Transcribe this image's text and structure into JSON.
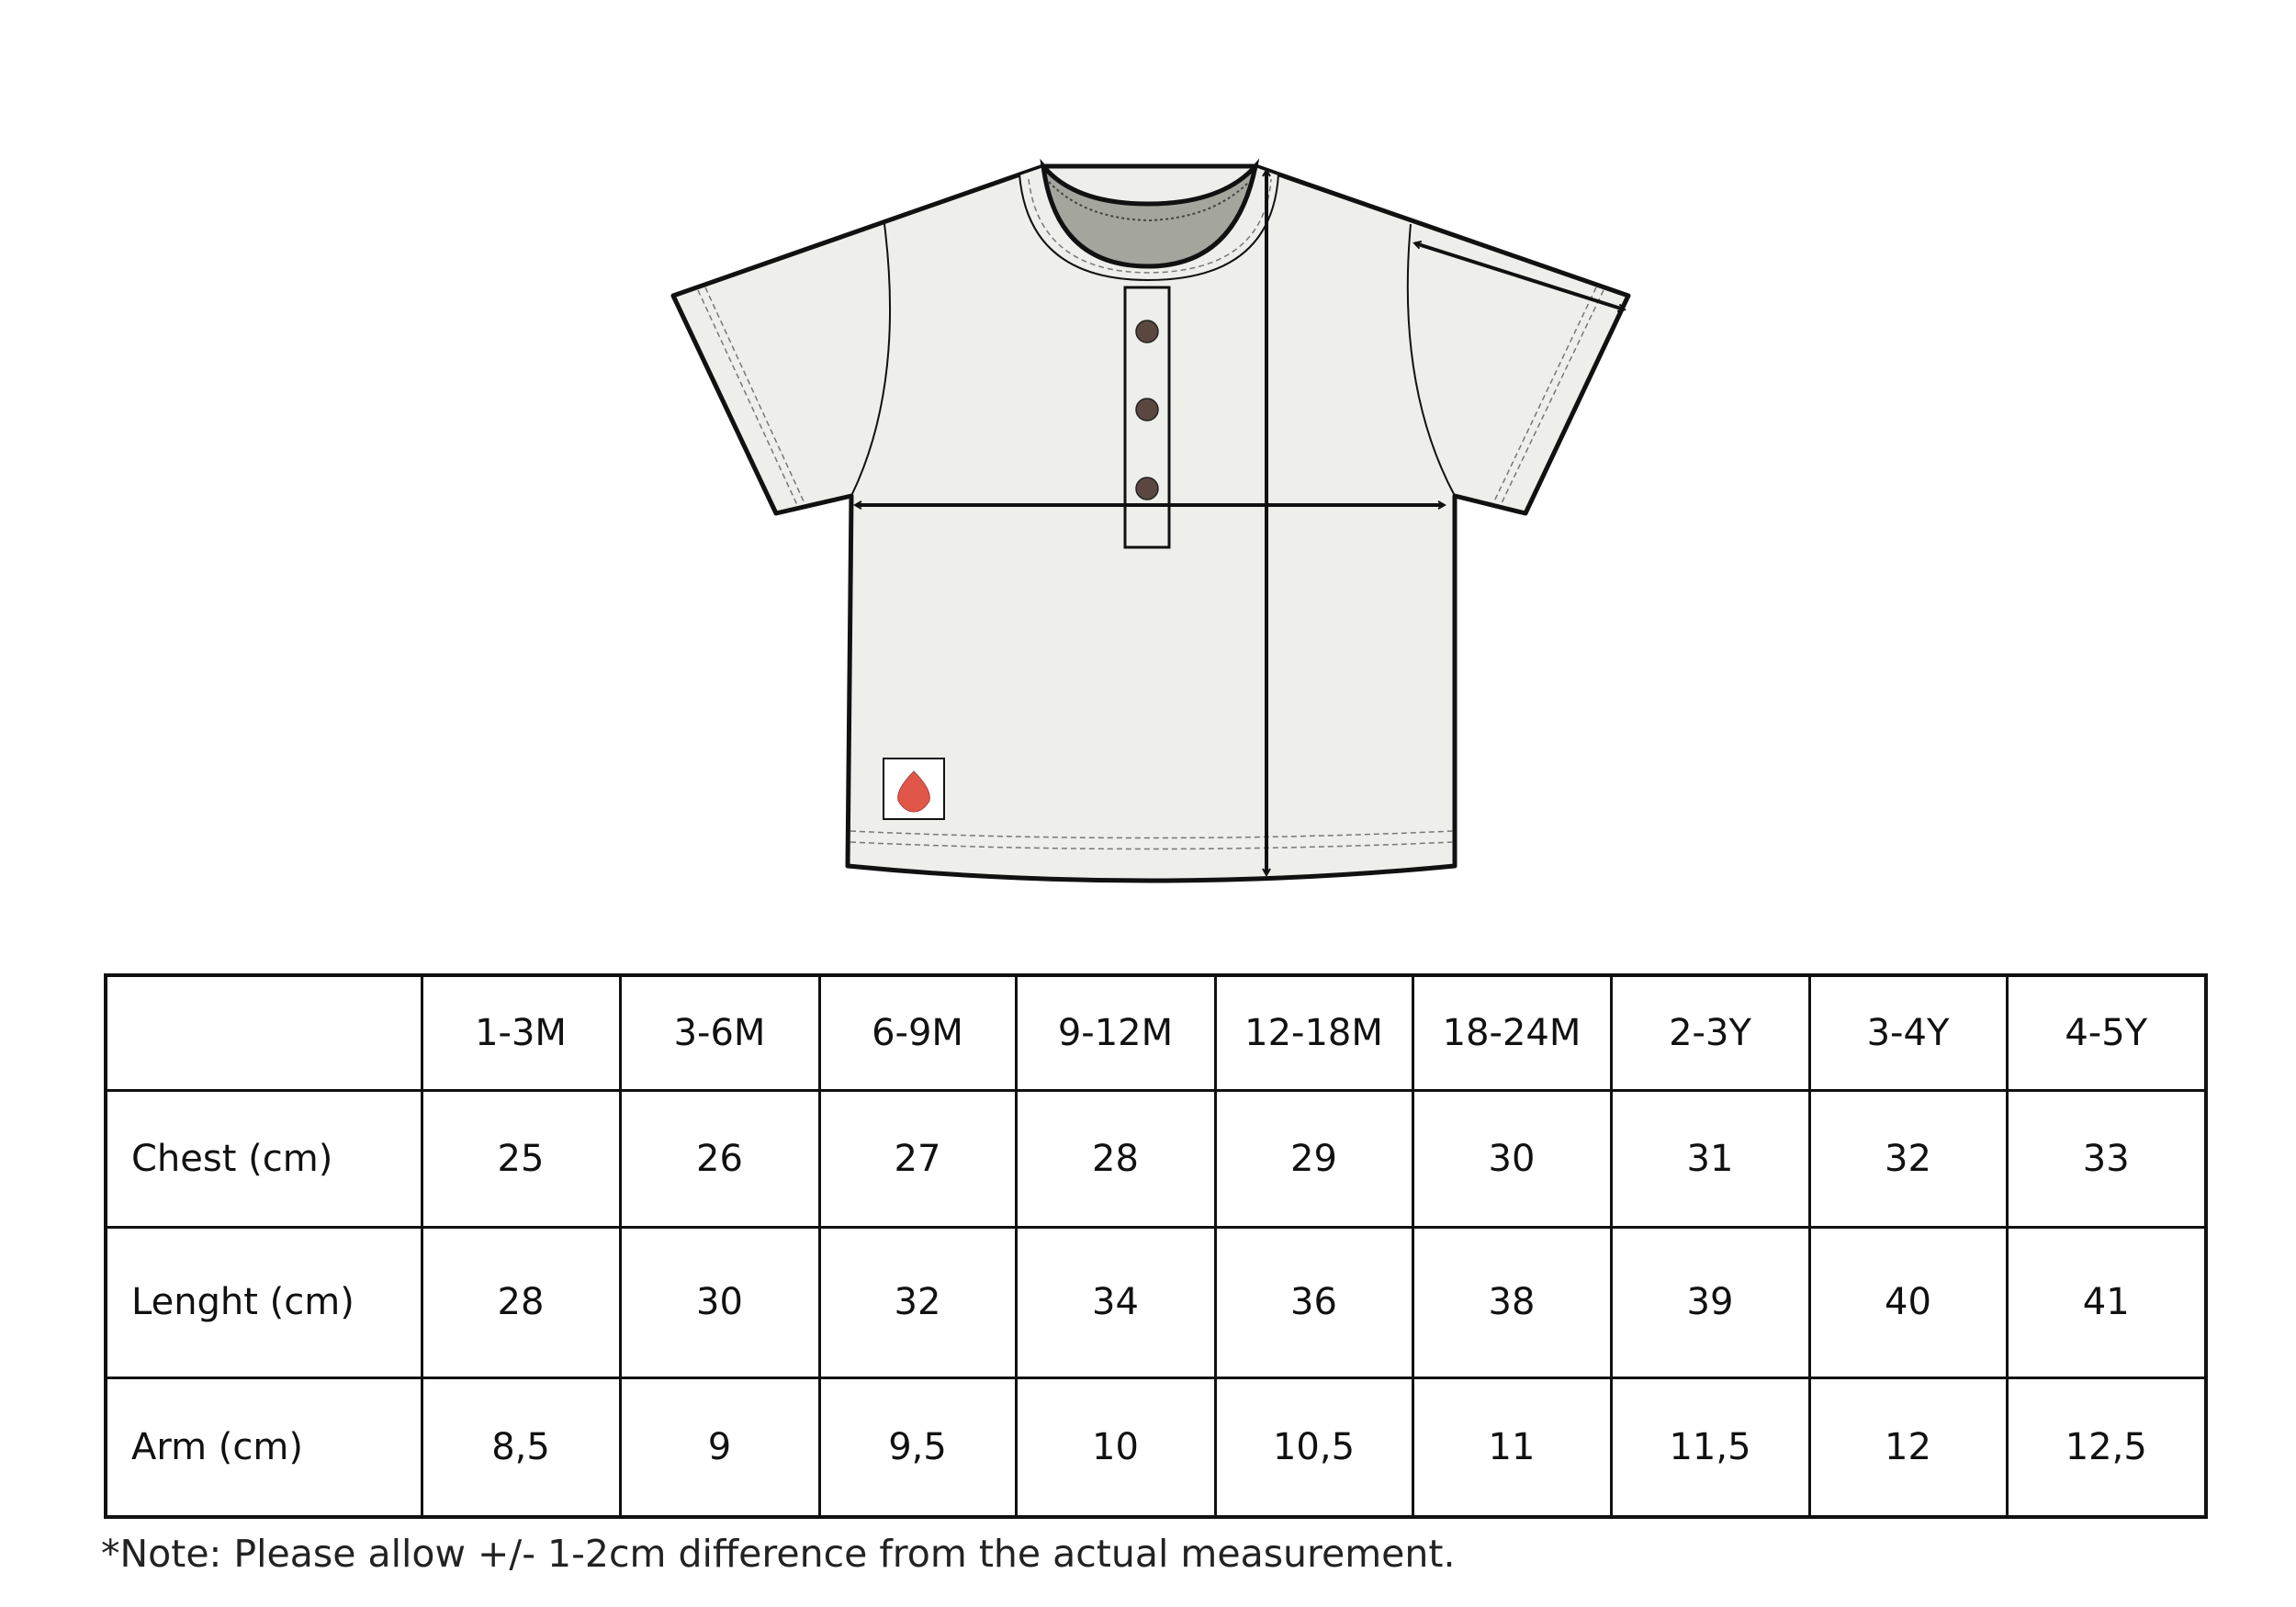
{
  "illustration": {
    "garment": "henley-tshirt",
    "colors": {
      "body": "#eeeeea",
      "inner_neck": "#a4a59c",
      "buttons": "#5a4840",
      "outline": "#111111",
      "label": "#e0574a"
    },
    "measurement_arrows": [
      "chest",
      "length",
      "arm"
    ]
  },
  "size_table": {
    "corner": "",
    "sizes": [
      "1-3M",
      "3-6M",
      "6-9M",
      "9-12M",
      "12-18M",
      "18-24M",
      "2-3Y",
      "3-4Y",
      "4-5Y"
    ],
    "rows": [
      {
        "label": "Chest (cm)",
        "values": [
          "25",
          "26",
          "27",
          "28",
          "29",
          "30",
          "31",
          "32",
          "33"
        ]
      },
      {
        "label": "Lenght (cm)",
        "values": [
          "28",
          "30",
          "32",
          "34",
          "36",
          "38",
          "39",
          "40",
          "41"
        ]
      },
      {
        "label": "Arm (cm)",
        "values": [
          "8,5",
          "9",
          "9,5",
          "10",
          "10,5",
          "11",
          "11,5",
          "12",
          "12,5"
        ]
      }
    ]
  },
  "note": "*Note: Please allow +/- 1-2cm difference from the actual measurement."
}
